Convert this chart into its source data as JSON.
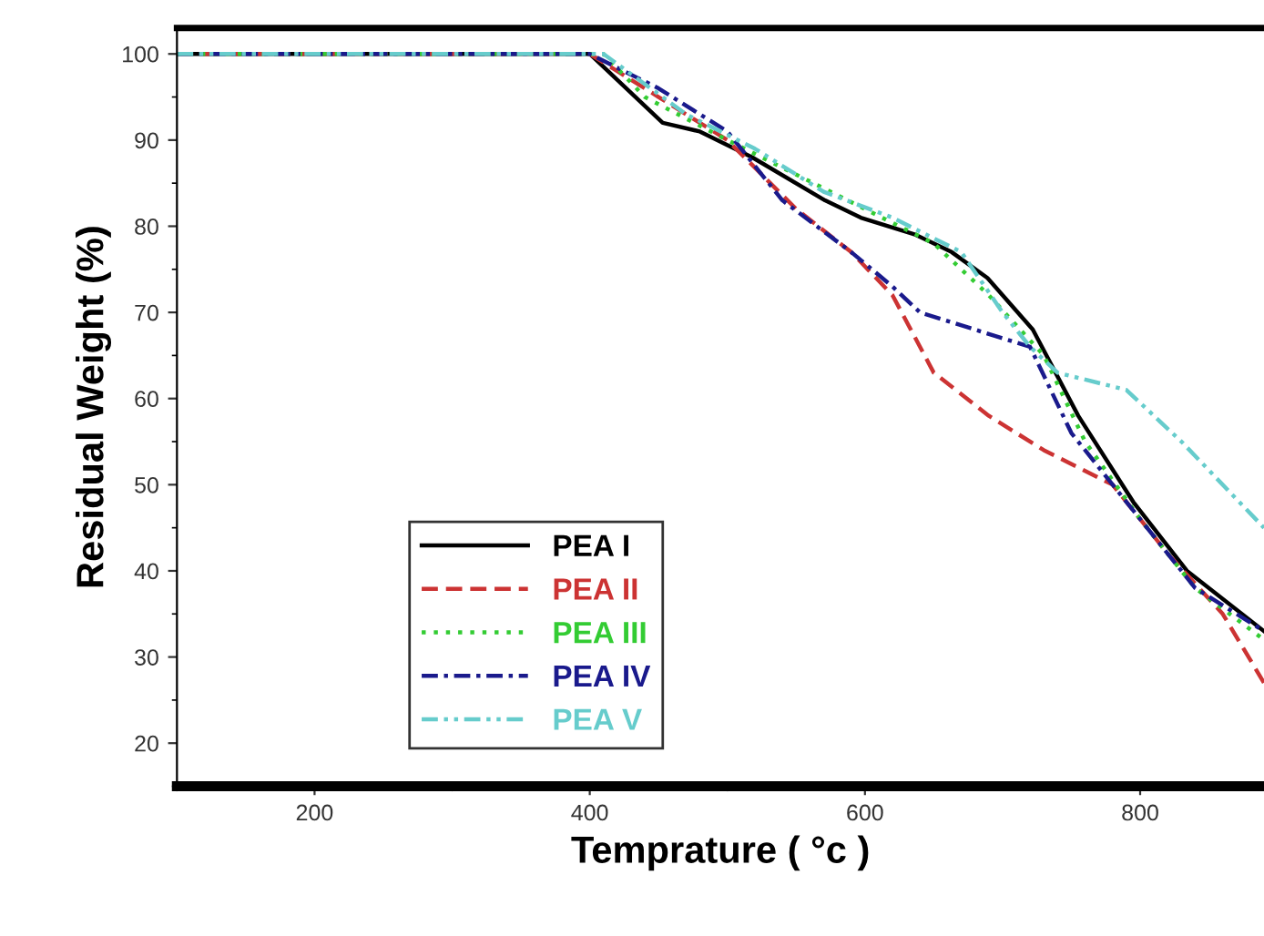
{
  "chart_data": {
    "type": "line",
    "xlabel": "Temprature ( °c )",
    "ylabel": "Residual Weight (%)",
    "xlim": [
      100,
      890
    ],
    "ylim": [
      15,
      103
    ],
    "xticks": [
      200,
      400,
      600,
      800
    ],
    "yticks": [
      20,
      30,
      40,
      50,
      60,
      70,
      80,
      90,
      100
    ],
    "grid": false,
    "legend": "bottom left",
    "series": [
      {
        "name": "PEA I",
        "color": "#000000",
        "line_style": "solid",
        "x": [
          100,
          400,
          453,
          480,
          518,
          571,
          597,
          637,
          663,
          689,
          722,
          755,
          795,
          834,
          890
        ],
        "values": [
          100,
          100,
          92,
          91,
          88,
          83,
          81,
          79,
          77,
          74,
          68,
          58,
          48,
          40,
          33
        ]
      },
      {
        "name": "PEA II",
        "color": "#cc3333",
        "line_style": "dashed",
        "x": [
          100,
          400,
          450,
          500,
          550,
          590,
          620,
          650,
          690,
          730,
          780,
          820,
          860,
          890
        ],
        "values": [
          100,
          100,
          95,
          90,
          82,
          77,
          72,
          63,
          58,
          54,
          50,
          42,
          35,
          27
        ]
      },
      {
        "name": "PEA III",
        "color": "#33cc33",
        "line_style": "dotted",
        "x": [
          100,
          410,
          440,
          500,
          550,
          600,
          650,
          690,
          730,
          760,
          800,
          840,
          890
        ],
        "values": [
          100,
          100,
          95,
          90,
          86,
          82,
          78,
          72,
          65,
          55,
          46,
          38,
          32
        ]
      },
      {
        "name": "PEA IV",
        "color": "#1a1a8c",
        "line_style": "dashdot",
        "x": [
          100,
          400,
          450,
          500,
          540,
          590,
          620,
          640,
          680,
          720,
          750,
          800,
          840,
          890
        ],
        "values": [
          100,
          100,
          96,
          91,
          83,
          77,
          73,
          70,
          68,
          66,
          56,
          46,
          38,
          33
        ]
      },
      {
        "name": "PEA V",
        "color": "#66cccc",
        "line_style": "dashdotdot",
        "x": [
          100,
          410,
          470,
          520,
          570,
          620,
          670,
          700,
          720,
          740,
          790,
          830,
          890
        ],
        "values": [
          100,
          100,
          93,
          89,
          84,
          81,
          77,
          70,
          66,
          63,
          61,
          55,
          45
        ]
      }
    ]
  }
}
